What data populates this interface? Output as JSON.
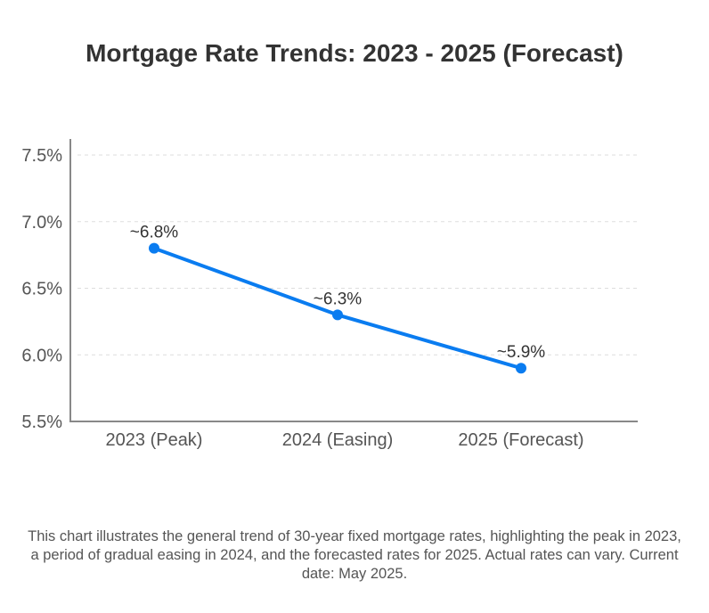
{
  "chart_data": {
    "type": "line",
    "title": "Mortgage Rate Trends: 2023 - 2025 (Forecast)",
    "xlabel": "",
    "ylabel": "",
    "categories": [
      "2023 (Peak)",
      "2024 (Easing)",
      "2025 (Forecast)"
    ],
    "series": [
      {
        "name": "30-year fixed mortgage rate",
        "values": [
          6.8,
          6.3,
          5.9
        ],
        "data_labels": [
          "~6.8%",
          "~6.3%",
          "~5.9%"
        ],
        "color": "#0a7cf0"
      }
    ],
    "ylim": [
      5.5,
      7.5
    ],
    "y_ticks": [
      5.5,
      6.0,
      6.5,
      7.0,
      7.5
    ],
    "y_tick_labels": [
      "5.5%",
      "6.0%",
      "6.5%",
      "7.0%",
      "7.5%"
    ],
    "grid": true,
    "legend": "none"
  },
  "caption": "This chart illustrates the general trend of 30-year fixed mortgage rates, highlighting the peak in 2023, a period of gradual easing in 2024, and the forecasted rates for 2025. Actual rates can vary. Current date: May 2025.",
  "colors": {
    "line": "#0a7cf0",
    "axis": "#888888",
    "grid": "#dddddd",
    "text": "#333333"
  }
}
